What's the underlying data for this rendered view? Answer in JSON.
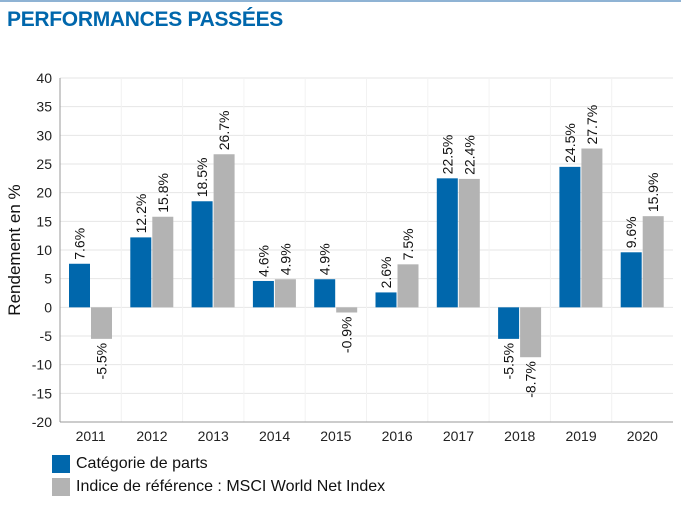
{
  "title": "PERFORMANCES PASSÉES",
  "chart_data": {
    "type": "bar",
    "title": "",
    "xlabel": "",
    "ylabel": "Rendement en %",
    "ylim": [
      -20,
      40
    ],
    "yticks": [
      40,
      35,
      30,
      25,
      20,
      15,
      10,
      5,
      0,
      -5,
      -10,
      -15,
      -20
    ],
    "grid": true,
    "legend_position": "bottom-left",
    "categories": [
      "2011",
      "2012",
      "2013",
      "2014",
      "2015",
      "2016",
      "2017",
      "2018",
      "2019",
      "2020"
    ],
    "series": [
      {
        "name": "Catégorie de parts",
        "color": "#0067ac",
        "values": [
          7.6,
          12.2,
          18.5,
          4.6,
          4.9,
          2.6,
          22.5,
          -5.5,
          24.5,
          9.6
        ],
        "labels": [
          "7.6%",
          "12.2%",
          "18.5%",
          "4.6%",
          "4.9%",
          "2.6%",
          "22.5%",
          "-5.5%",
          "24.5%",
          "9.6%"
        ]
      },
      {
        "name": "Indice de référence : MSCI World Net Index",
        "color": "#b3b3b3",
        "values": [
          -5.5,
          15.8,
          26.7,
          4.9,
          -0.9,
          7.5,
          22.4,
          -8.7,
          27.7,
          15.9
        ],
        "labels": [
          "-5.5%",
          "15.8%",
          "26.7%",
          "4.9%",
          "-0.9%",
          "7.5%",
          "22.4%",
          "-8.7%",
          "27.7%",
          "15.9%"
        ]
      }
    ]
  }
}
